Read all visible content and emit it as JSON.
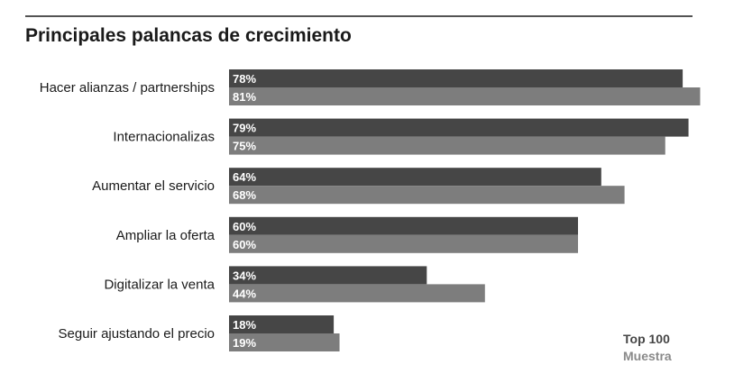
{
  "chart_data": {
    "type": "bar",
    "orientation": "horizontal",
    "title": "Principales palancas de crecimiento",
    "categories": [
      "Hacer alianzas / partnerships",
      "Internacionalizas",
      "Aumentar el servicio",
      "Ampliar la oferta",
      "Digitalizar la venta",
      "Seguir ajustando el precio"
    ],
    "series": [
      {
        "name": "Top 100",
        "color": "#464646",
        "values": [
          78,
          79,
          64,
          60,
          34,
          18
        ],
        "labels": [
          "78%",
          "79%",
          "64%",
          "60%",
          "34%",
          "18%"
        ]
      },
      {
        "name": "Muestra",
        "color": "#7d7d7d",
        "values": [
          81,
          75,
          68,
          60,
          44,
          19
        ],
        "labels": [
          "81%",
          "75%",
          "68%",
          "60%",
          "44%",
          "19%"
        ]
      }
    ],
    "xlim": [
      0,
      100
    ],
    "unit": "%",
    "grid": false,
    "legend_position": "bottom-right"
  }
}
